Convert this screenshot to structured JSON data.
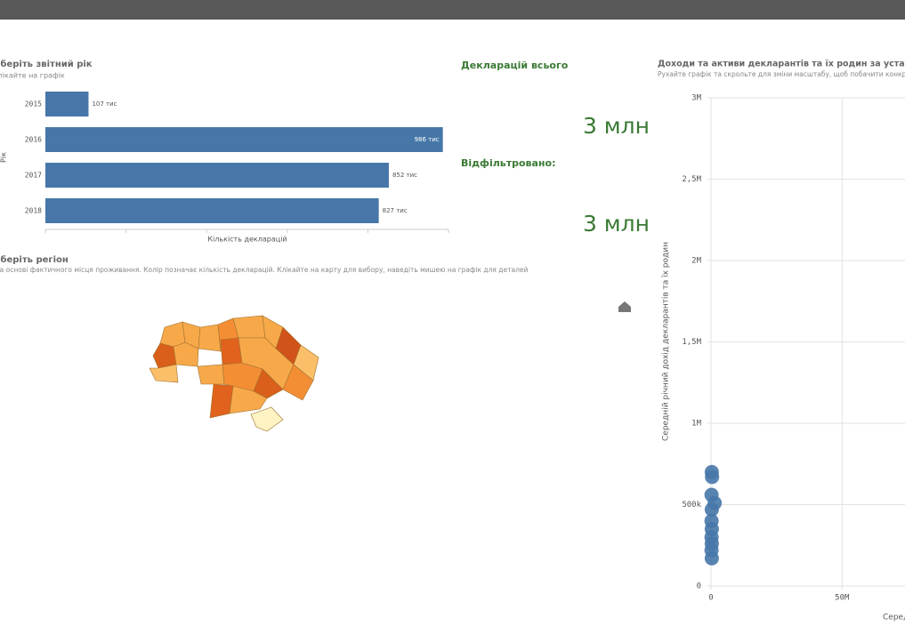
{
  "year_panel": {
    "title": "Оберіть звітний рік",
    "subtitle": "Клікайте на графік",
    "y_label": "Рік",
    "x_label": "Кількість декларацій",
    "categories": [
      "2015",
      "2016",
      "2017",
      "2018"
    ],
    "values": [
      107000,
      986000,
      852000,
      827000
    ],
    "value_labels": [
      "107 тис",
      "986 тис",
      "852 тис",
      "827 тис"
    ],
    "xlim": [
      0,
      1000000
    ],
    "xticks": [
      0,
      200000,
      400000,
      600000,
      800000,
      1000000
    ],
    "color": "#4677a8"
  },
  "kpi": {
    "total_label": "Декларацій всього",
    "total_value": "3 млн",
    "filtered_label": "Відфільтровано:",
    "filtered_value": "3 млн"
  },
  "region_panel": {
    "title": "Оберіть регіон",
    "subtitle": "На основі фактичного місця проживання. Колір позначає кількість декларацій. Клікайте на карту для вибору, наведіть мишею на графік для деталей"
  },
  "scatter_panel": {
    "title": "Доходи та активи декларантів та їх родин за установами",
    "subtitle": "Рухайте графік та скрольте для зміни масштабу, щоб побачити конкретні",
    "y_label": "Середній річний дохід декларантів та їх родин",
    "x_label": "Серед",
    "x": [
      300000,
      400000,
      200000,
      1400000,
      300000,
      200000,
      300000,
      200000,
      300000,
      200000,
      300000
    ],
    "y": [
      700000,
      670000,
      560000,
      510000,
      470000,
      400000,
      350000,
      300000,
      260000,
      220000,
      170000
    ],
    "xlim": [
      0,
      74000000
    ],
    "ylim": [
      0,
      3000000
    ],
    "xticks": [
      0,
      {
        "value": 50000000,
        "label": "50M"
      }
    ],
    "yticks": [
      0,
      {
        "value": 500000,
        "label": "500k"
      },
      {
        "value": 1000000,
        "label": "1M"
      },
      {
        "value": 1500000,
        "label": "1,5M"
      },
      {
        "value": 2000000,
        "label": "2M"
      },
      {
        "value": 2500000,
        "label": "2,5M"
      },
      {
        "value": 3000000,
        "label": "3M"
      }
    ],
    "color": "#4677a8"
  }
}
